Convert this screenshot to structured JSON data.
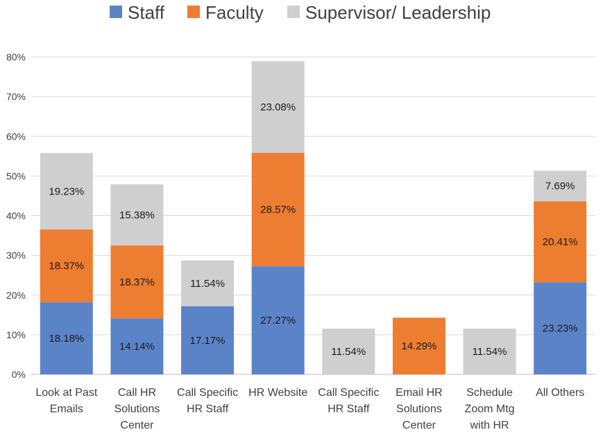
{
  "chart_data": {
    "type": "bar",
    "stacked": true,
    "categories": [
      [
        "Look at Past",
        "Emails"
      ],
      [
        "Call HR",
        "Solutions",
        "Center"
      ],
      [
        "Call Specific",
        "HR Staff"
      ],
      [
        "HR Website"
      ],
      [
        "Call Specific",
        "HR Staff"
      ],
      [
        "Email HR",
        "Solutions",
        "Center"
      ],
      [
        "Schedule",
        "Zoom Mtg",
        "with HR"
      ],
      [
        "All Others"
      ]
    ],
    "series": [
      {
        "name": "Staff",
        "color": "#5b84c8",
        "values": [
          18.18,
          14.14,
          17.17,
          27.27,
          null,
          null,
          null,
          23.23
        ],
        "labels": [
          "18.18%",
          "14.14%",
          "17.17%",
          "27.27%",
          "",
          "",
          "",
          "23.23%"
        ]
      },
      {
        "name": "Faculty",
        "color": "#ed7d31",
        "values": [
          18.37,
          18.37,
          null,
          28.57,
          null,
          14.29,
          null,
          20.41
        ],
        "labels": [
          "18.37%",
          "18.37%",
          "",
          "28.57%",
          "",
          "14.29%",
          "",
          "20.41%"
        ]
      },
      {
        "name": "Supervisor/ Leadership",
        "color": "#d0cfcf",
        "values": [
          19.23,
          15.38,
          11.54,
          23.08,
          11.54,
          null,
          11.54,
          7.69
        ],
        "labels": [
          "19.23%",
          "15.38%",
          "11.54%",
          "23.08%",
          "11.54%",
          "",
          "11.54%",
          "7.69%"
        ]
      }
    ],
    "yticks": [
      "0%",
      "10%",
      "20%",
      "30%",
      "40%",
      "50%",
      "60%",
      "70%",
      "80%"
    ],
    "ylim": [
      0,
      80
    ],
    "grid": true,
    "legend_position": "top"
  }
}
